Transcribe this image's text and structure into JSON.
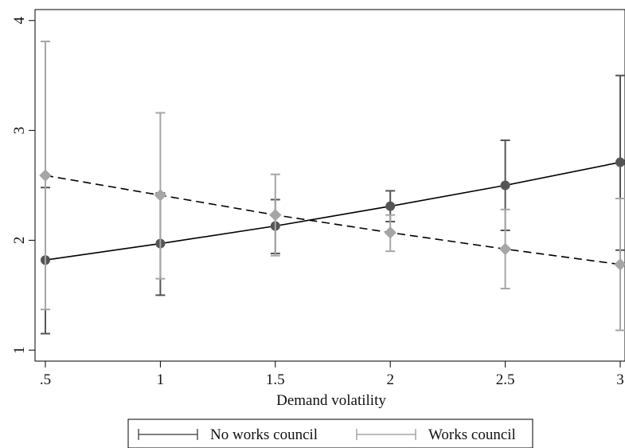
{
  "chart_data": {
    "type": "line",
    "xlabel": "Demand volatility",
    "ylabel": "",
    "xlim": [
      0.5,
      3
    ],
    "ylim": [
      0.9,
      4.1
    ],
    "x_ticks": [
      0.5,
      1,
      1.5,
      2,
      2.5,
      3
    ],
    "x_tick_labels": [
      ".5",
      "1",
      "1.5",
      "2",
      "2.5",
      "3"
    ],
    "y_ticks": [
      1,
      2,
      3,
      4
    ],
    "y_tick_labels": [
      "1",
      "2",
      "3",
      "4"
    ],
    "grid": false,
    "legend_position": "bottom",
    "series": [
      {
        "name": "No works council",
        "color": "#555555",
        "marker": "circle",
        "line_style": "solid",
        "x": [
          0.5,
          1,
          1.5,
          2,
          2.5,
          3
        ],
        "y": [
          1.82,
          1.97,
          2.13,
          2.31,
          2.5,
          2.71
        ],
        "ci_low": [
          1.15,
          1.5,
          1.88,
          2.17,
          2.09,
          1.91
        ],
        "ci_high": [
          2.48,
          2.43,
          2.37,
          2.45,
          2.91,
          3.5
        ]
      },
      {
        "name": "Works council",
        "color": "#a6a6a6",
        "marker": "diamond",
        "line_style": "dashed",
        "x": [
          0.5,
          1,
          1.5,
          2,
          2.5,
          3
        ],
        "y": [
          2.59,
          2.41,
          2.23,
          2.07,
          1.92,
          1.78
        ],
        "ci_low": [
          1.37,
          1.65,
          1.86,
          1.9,
          1.56,
          1.18
        ],
        "ci_high": [
          3.81,
          3.16,
          2.6,
          2.23,
          2.28,
          2.38
        ]
      }
    ]
  }
}
